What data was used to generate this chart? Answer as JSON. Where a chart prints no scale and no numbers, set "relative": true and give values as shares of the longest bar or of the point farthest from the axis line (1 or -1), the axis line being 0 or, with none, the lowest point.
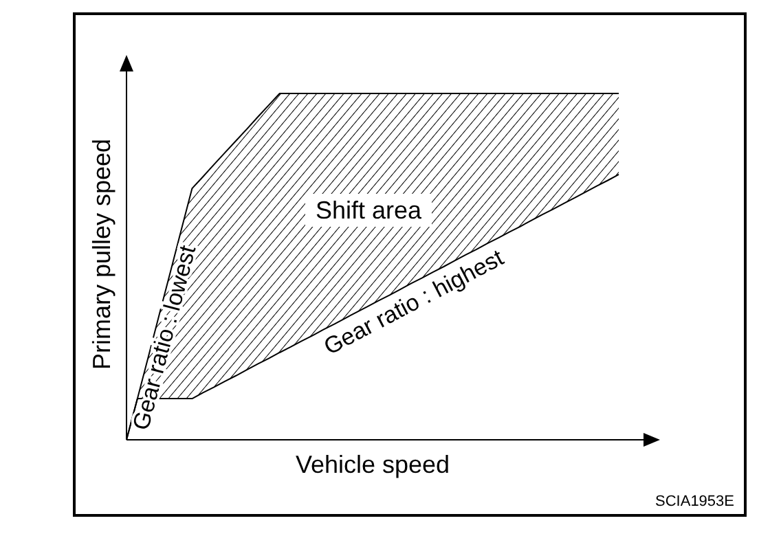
{
  "chart_data": {
    "type": "line",
    "relative": true,
    "xlabel": "Vehicle speed",
    "ylabel": "Primary pulley speed",
    "categories": [
      null,
      null,
      null,
      null,
      null,
      null,
      null,
      null,
      null,
      null,
      null,
      null,
      null,
      null,
      null,
      null,
      null,
      null,
      null,
      null,
      null,
      null,
      null,
      null,
      null,
      null,
      null,
      null,
      null,
      null,
      null,
      null,
      null,
      null,
      null,
      null,
      null,
      null,
      null,
      null,
      null,
      null,
      null,
      null,
      null,
      null
    ],
    "series": [
      {
        "name": "Gear ratio : lowest",
        "color": "#000000",
        "values": [
          0,
          0.119,
          0.24,
          0.362,
          0.483,
          0.605,
          0.726,
          0.76,
          0.795,
          0.829,
          0.863,
          0.897,
          0.932,
          0.966,
          1,
          1,
          1,
          1,
          1,
          1,
          1,
          1,
          1,
          1,
          1,
          1,
          1,
          1,
          1,
          1,
          1,
          1,
          1,
          1,
          1,
          1,
          1,
          1,
          1,
          1,
          1,
          1,
          1,
          1,
          1,
          1
        ],
        "upper": [
          0,
          0.119,
          0.24,
          0.362,
          0.483,
          0.605,
          0.726,
          0.76,
          0.795,
          0.829,
          0.863,
          0.897,
          0.932,
          0.966,
          1,
          1,
          1,
          1,
          1,
          1,
          1,
          1,
          1,
          1,
          1,
          1,
          1,
          1,
          1,
          1,
          1,
          1,
          1,
          1,
          1,
          1,
          1,
          1,
          1,
          1,
          1,
          1,
          1,
          1,
          1,
          1
        ],
        "lower": [
          0,
          0.119,
          0.119,
          0.119,
          0.119,
          0.119,
          0.119,
          0.136,
          0.152,
          0.169,
          0.185,
          0.202,
          0.219,
          0.235,
          0.252,
          0.268,
          0.285,
          0.301,
          0.318,
          0.334,
          0.351,
          0.368,
          0.384,
          0.401,
          0.417,
          0.434,
          0.451,
          0.467,
          0.484,
          0.5,
          0.517,
          0.534,
          0.55,
          0.567,
          0.583,
          0.6,
          0.616,
          0.633,
          0.65,
          0.666,
          0.683,
          0.699,
          0.716,
          0.733,
          0.749,
          0.766
        ]
      },
      {
        "name": "Gear ratio : highest",
        "color": "#000000",
        "values": [
          0,
          0.119,
          0.119,
          0.119,
          0.119,
          0.119,
          0.119,
          0.136,
          0.152,
          0.169,
          0.185,
          0.202,
          0.219,
          0.235,
          0.252,
          0.268,
          0.285,
          0.301,
          0.318,
          0.334,
          0.351,
          0.368,
          0.384,
          0.401,
          0.417,
          0.434,
          0.451,
          0.467,
          0.484,
          0.5,
          0.517,
          0.534,
          0.55,
          0.567,
          0.583,
          0.6,
          0.616,
          0.633,
          0.65,
          0.666,
          0.683,
          0.699,
          0.716,
          0.733,
          0.749,
          0.766
        ]
      }
    ],
    "annotations": [
      "Shift area",
      "SCIA1953E"
    ]
  }
}
